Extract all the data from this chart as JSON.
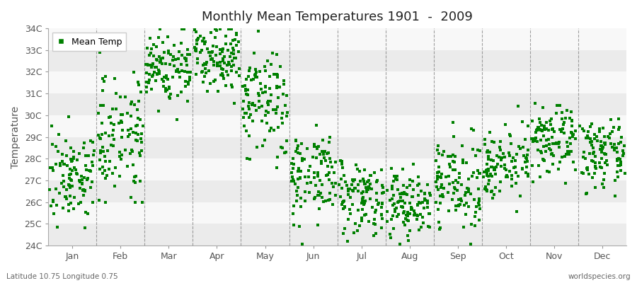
{
  "title": "Monthly Mean Temperatures 1901  -  2009",
  "ylabel": "Temperature",
  "xlabel": "",
  "bottom_left": "Latitude 10.75 Longitude 0.75",
  "bottom_right": "worldspecies.org",
  "legend_label": "Mean Temp",
  "ylim": [
    24,
    34
  ],
  "yticks": [
    24,
    25,
    26,
    27,
    28,
    29,
    30,
    31,
    32,
    33,
    34
  ],
  "ytick_labels": [
    "24C",
    "25C",
    "26C",
    "27C",
    "28C",
    "29C",
    "30C",
    "31C",
    "32C",
    "33C",
    "34C"
  ],
  "months": [
    "Jan",
    "Feb",
    "Mar",
    "Apr",
    "May",
    "Jun",
    "Jul",
    "Aug",
    "Sep",
    "Oct",
    "Nov",
    "Dec"
  ],
  "marker_color": "#008000",
  "marker_size": 2.5,
  "bg_color": "#FFFFFF",
  "band_color_dark": "#EBEBEB",
  "band_color_light": "#F8F8F8",
  "grid_color": "#666666",
  "month_means": [
    27.2,
    29.2,
    32.2,
    32.8,
    30.5,
    27.3,
    26.3,
    25.9,
    26.8,
    27.8,
    28.8,
    28.2
  ],
  "month_stds": [
    1.0,
    1.4,
    0.85,
    0.75,
    1.3,
    1.0,
    0.85,
    0.8,
    1.0,
    0.75,
    0.75,
    0.75
  ],
  "n_years": 109,
  "seed": 7
}
